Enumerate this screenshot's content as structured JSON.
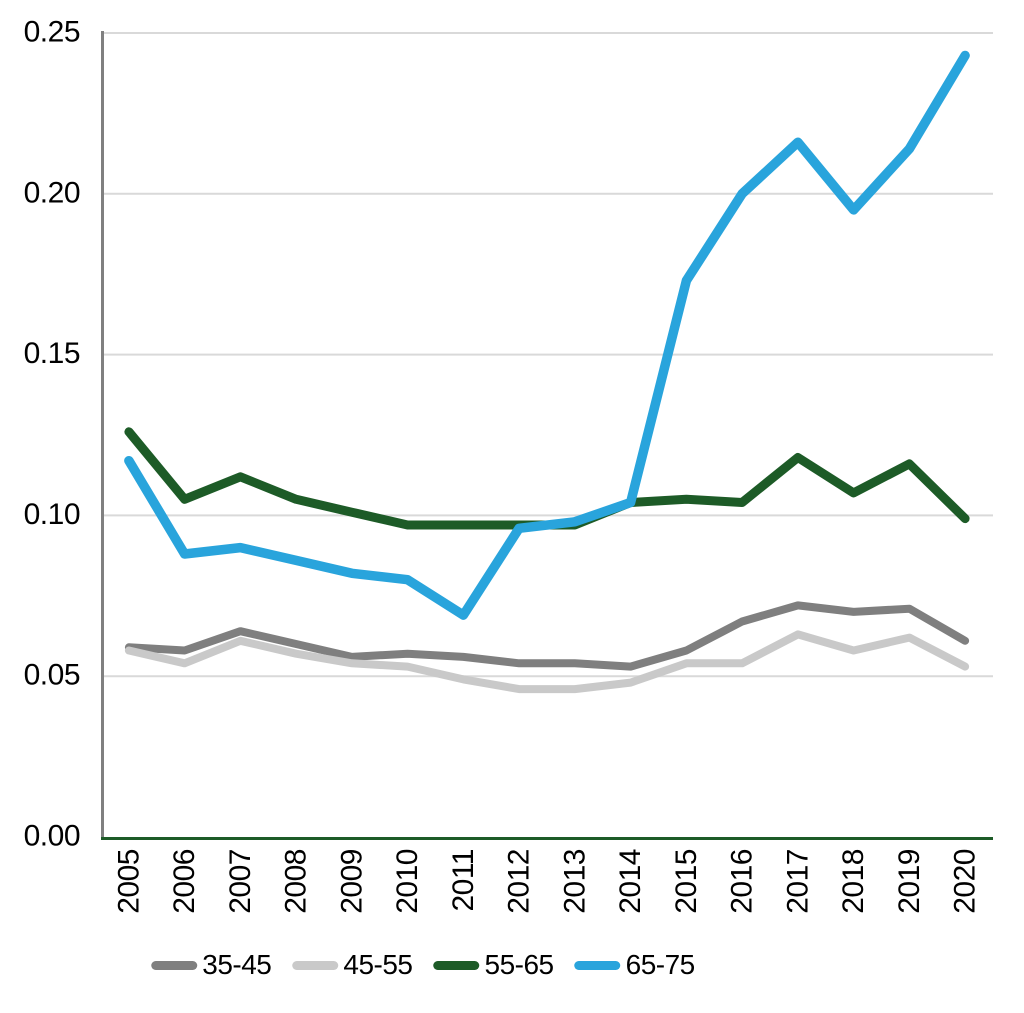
{
  "chart_data": {
    "type": "line",
    "title": "",
    "xlabel": "",
    "ylabel": "",
    "categories": [
      "2005",
      "2006",
      "2007",
      "2008",
      "2009",
      "2010",
      "2011",
      "2012",
      "2013",
      "2014",
      "2015",
      "2016",
      "2017",
      "2018",
      "2019",
      "2020"
    ],
    "series": [
      {
        "name": "35-45",
        "color": "#7f7f7f",
        "values": [
          0.059,
          0.058,
          0.064,
          0.06,
          0.056,
          0.057,
          0.056,
          0.054,
          0.054,
          0.053,
          0.058,
          0.067,
          0.072,
          0.07,
          0.071,
          0.061
        ]
      },
      {
        "name": "45-55",
        "color": "#c9c9c9",
        "values": [
          0.058,
          0.054,
          0.061,
          0.057,
          0.054,
          0.053,
          0.049,
          0.046,
          0.046,
          0.048,
          0.054,
          0.054,
          0.063,
          0.058,
          0.062,
          0.053
        ]
      },
      {
        "name": "55-65",
        "color": "#1d5b27",
        "values": [
          0.126,
          0.105,
          0.112,
          0.105,
          0.101,
          0.097,
          0.097,
          0.097,
          0.097,
          0.104,
          0.105,
          0.104,
          0.118,
          0.107,
          0.116,
          0.099
        ]
      },
      {
        "name": "65-75",
        "color": "#29a4dc",
        "values": [
          0.117,
          0.088,
          0.09,
          0.086,
          0.082,
          0.08,
          0.069,
          0.096,
          0.098,
          0.104,
          0.173,
          0.2,
          0.216,
          0.195,
          0.214,
          0.243
        ]
      }
    ],
    "ylim": [
      0,
      0.25
    ],
    "ytick_step": 0.05,
    "ytick_labels": [
      "0.00",
      "0.05",
      "0.10",
      "0.15",
      "0.20",
      "0.25"
    ],
    "grid": "horizontal",
    "gridline_color": "#d9d9d9",
    "y_axis_color": "#808080",
    "x_axis_color": "#1d5b27",
    "text_color": "#000000",
    "legend_position": "bottom"
  }
}
